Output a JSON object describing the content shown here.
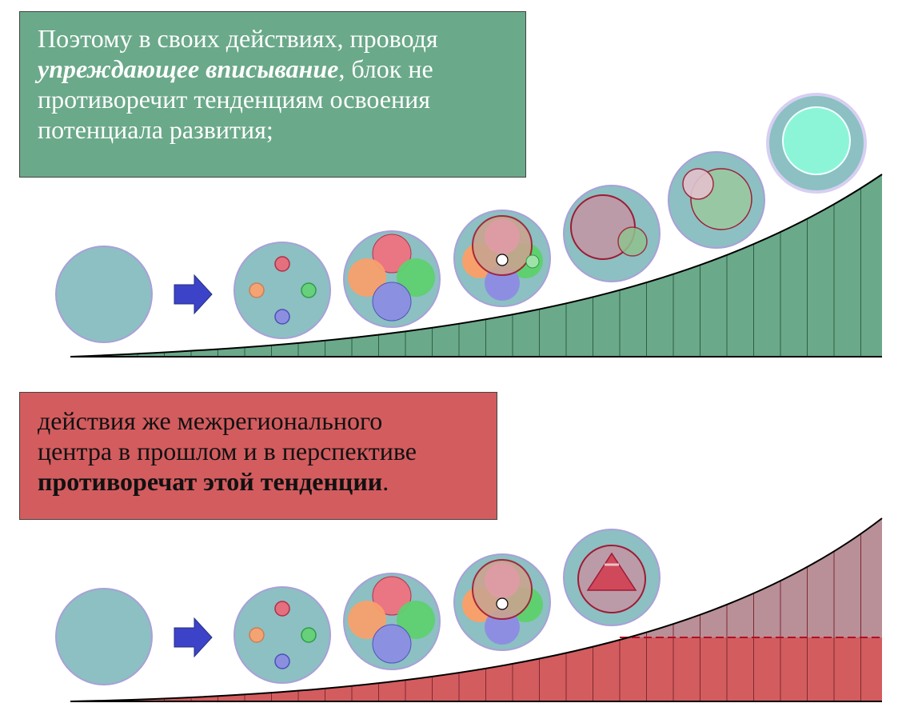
{
  "top_caption": {
    "line1": "Поэтому в своих действиях, проводя",
    "emph": "упреждающее вписывание",
    "line2_rest": ", блок не",
    "line3": "противоречит тенденциям освоения",
    "line4": "потенциала развития;"
  },
  "bottom_caption": {
    "line1": "действия же межрегионального",
    "line2": "центра в прошлом и в перспективе",
    "emph": "противоречат этой тенденции",
    "end": "."
  },
  "colors": {
    "green_fill": "#6aa989",
    "red_fill": "#d35c5f",
    "mauve_fill": "#b98f98",
    "circle_fill": "#8cc0c2",
    "circle_stroke": "#a9a0d8",
    "arrow": "#3c43c8"
  }
}
